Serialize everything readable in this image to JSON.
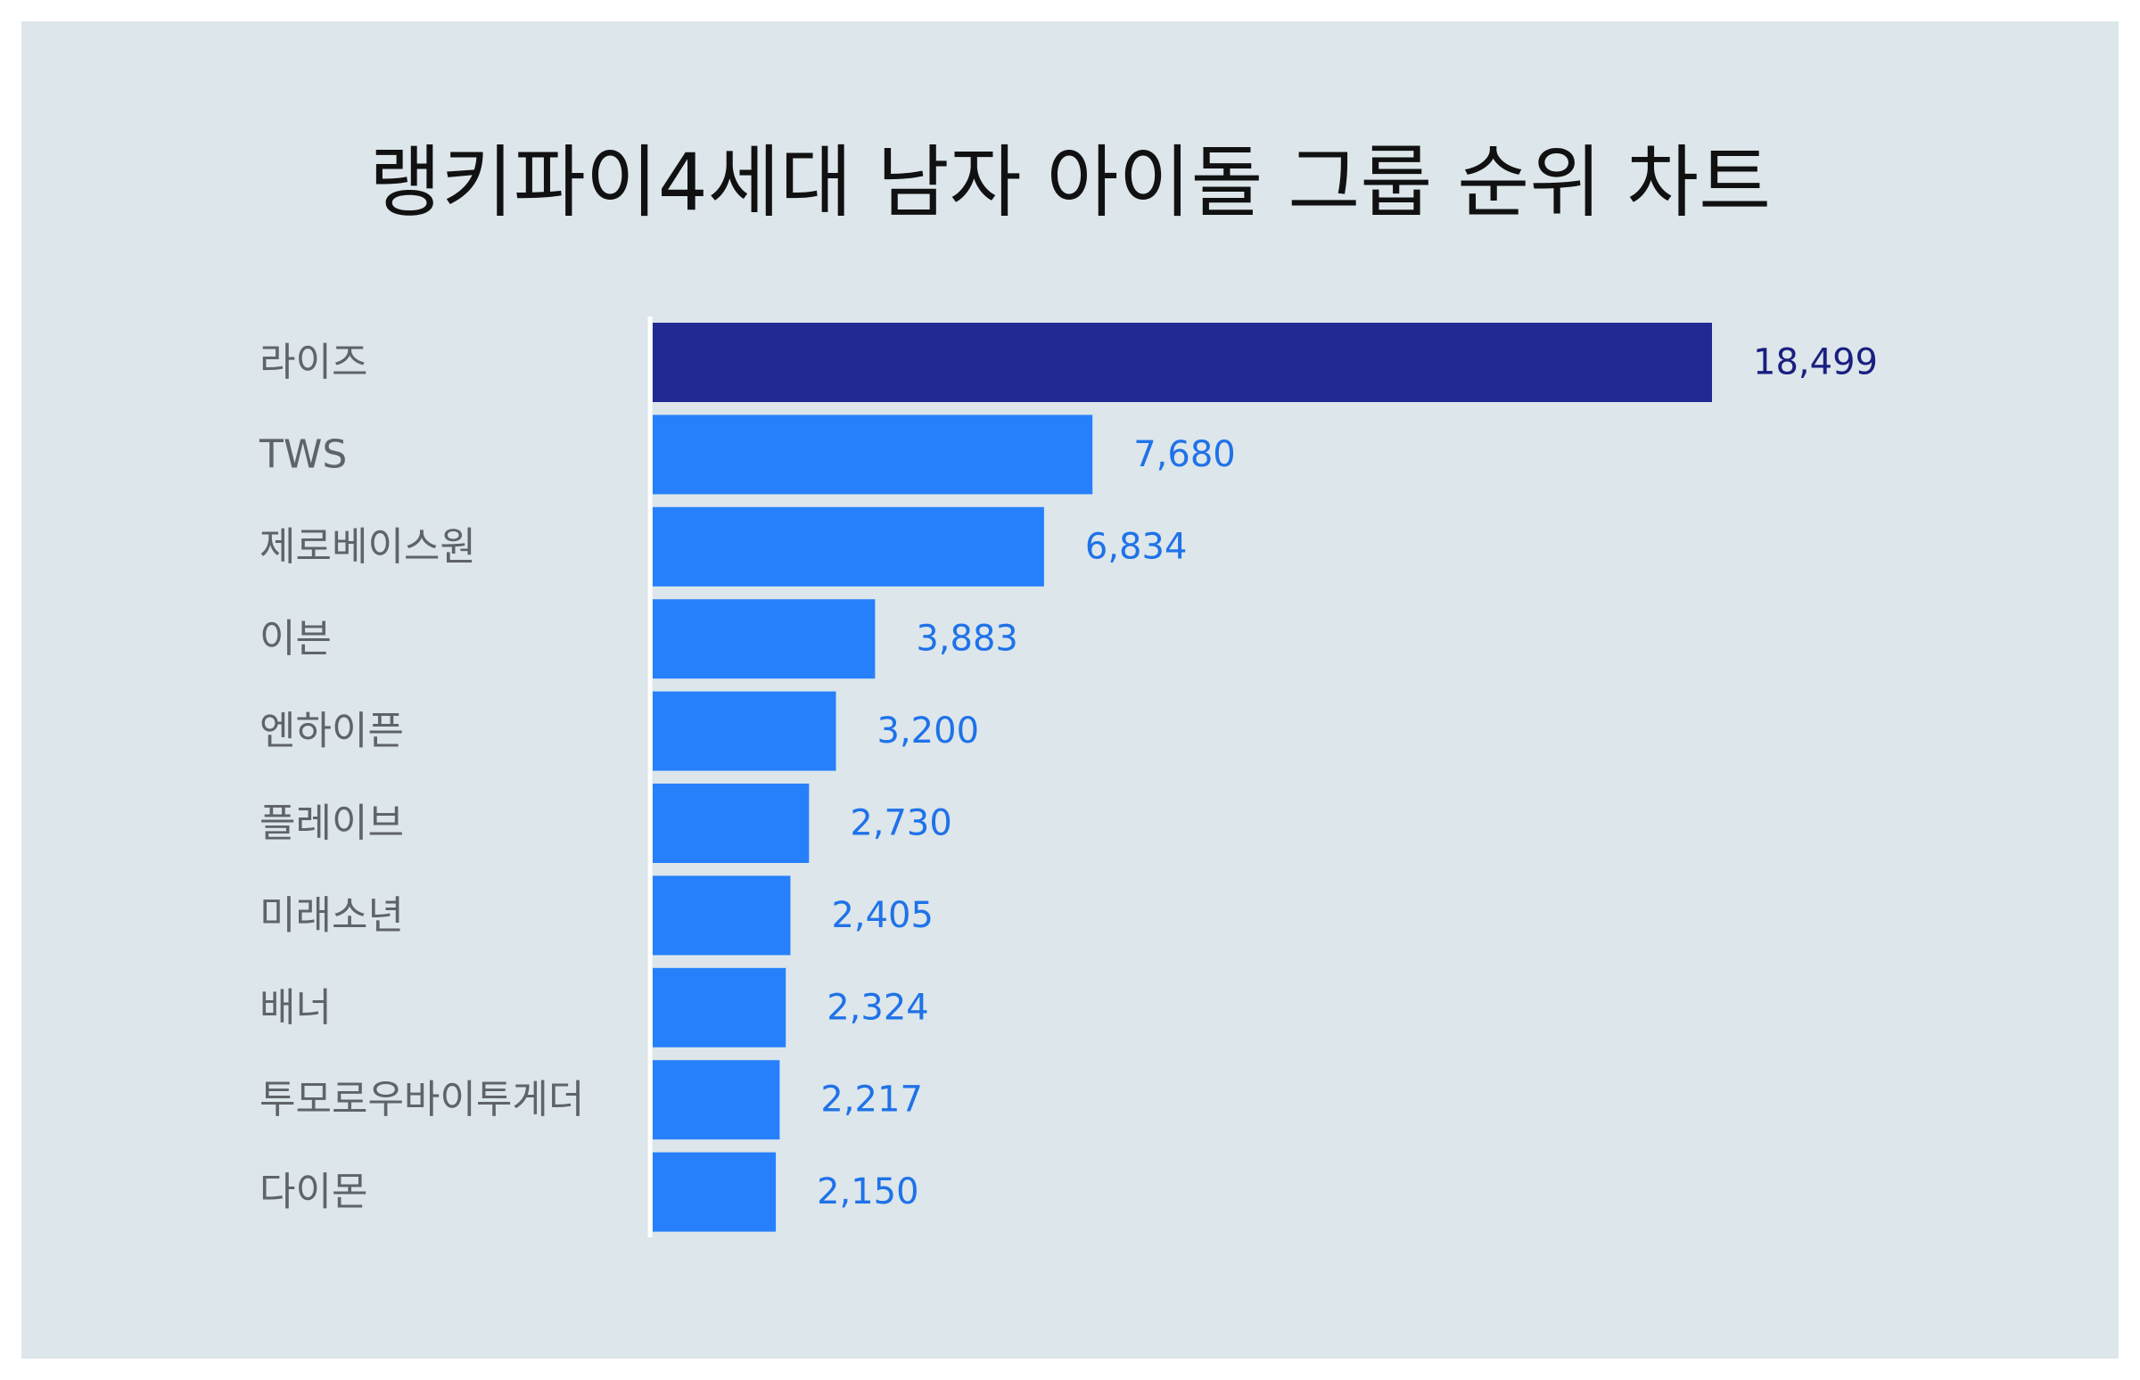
{
  "title": "랭키파이4세대 남자 아이돌 그룹 순위 차트",
  "colors": {
    "background": "#dce6eb",
    "highlight_bar": "#212a91",
    "highlight_label": "#1a1f80",
    "bar": "#2680fb",
    "value_label": "#1f72e8",
    "category_label": "#5f6468",
    "axis_line": "#ffffff"
  },
  "chart_data": {
    "type": "bar",
    "orientation": "horizontal",
    "title": "랭키파이4세대 남자 아이돌 그룹 순위 차트",
    "categories": [
      "라이즈",
      "TWS",
      "제로베이스원",
      "이븐",
      "엔하이픈",
      "플레이브",
      "미래소년",
      "배너",
      "투모로우바이투게더",
      "다이몬"
    ],
    "values": [
      18499,
      7680,
      6834,
      3883,
      3200,
      2730,
      2405,
      2324,
      2217,
      2150
    ],
    "value_labels": [
      "18,499",
      "7,680",
      "6,834",
      "3,883",
      "3,200",
      "2,730",
      "2,405",
      "2,324",
      "2,217",
      "2,150"
    ],
    "highlighted_index": 0,
    "xlim": [
      0,
      18499
    ],
    "grid": false,
    "legend": "none"
  }
}
